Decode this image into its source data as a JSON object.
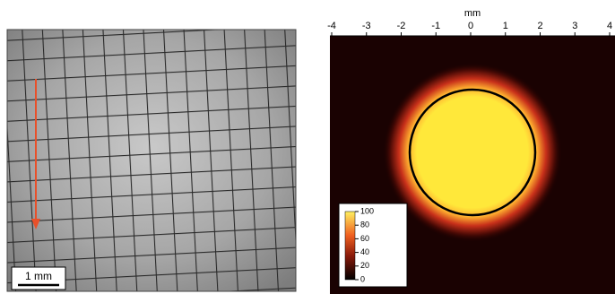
{
  "scale_bar": {
    "label": "1 mm"
  },
  "chart_data": {
    "type": "image-map",
    "xlabel": "mm",
    "xlim": [
      -4,
      4
    ],
    "xticks": [
      -4,
      -3,
      -2,
      -1,
      0,
      1,
      2,
      3,
      4
    ],
    "colorbar": {
      "lim": [
        0,
        100
      ],
      "ticks": [
        0,
        20,
        40,
        60,
        80,
        100
      ]
    }
  }
}
